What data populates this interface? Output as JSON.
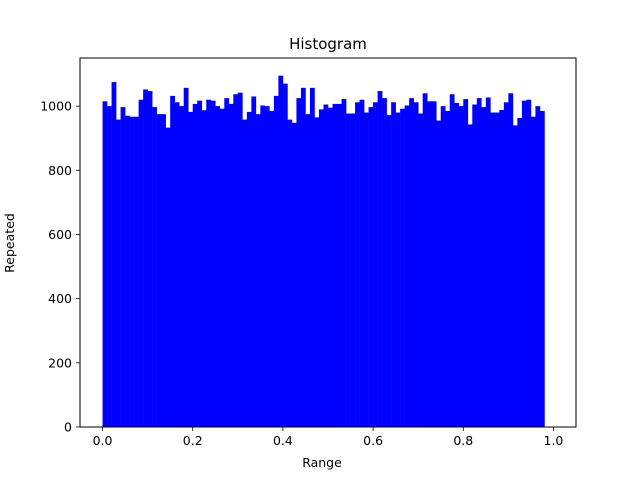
{
  "chart_data": {
    "type": "bar",
    "title": "Histogram",
    "xlabel": "Range",
    "ylabel": "Repeated",
    "xlim": [
      -0.05,
      1.05
    ],
    "ylim": [
      0,
      1150
    ],
    "grid": false,
    "bar_color": "#0000ff",
    "bin_start": 0.0,
    "bin_width": 0.01,
    "x_ticks": [
      {
        "value": 0.0,
        "label": "0.0"
      },
      {
        "value": 0.2,
        "label": "0.2"
      },
      {
        "value": 0.4,
        "label": "0.4"
      },
      {
        "value": 0.6,
        "label": "0.6"
      },
      {
        "value": 0.8,
        "label": "0.8"
      },
      {
        "value": 1.0,
        "label": "1.0"
      }
    ],
    "y_ticks": [
      {
        "value": 0,
        "label": "0"
      },
      {
        "value": 200,
        "label": "200"
      },
      {
        "value": 400,
        "label": "400"
      },
      {
        "value": 600,
        "label": "600"
      },
      {
        "value": 800,
        "label": "800"
      },
      {
        "value": 1000,
        "label": "1000"
      }
    ],
    "values": [
      1015,
      1000,
      1075,
      958,
      997,
      970,
      967,
      967,
      1020,
      1052,
      1047,
      997,
      975,
      975,
      933,
      1032,
      1012,
      1000,
      1057,
      982,
      1007,
      1017,
      987,
      1020,
      1017,
      1000,
      992,
      1025,
      1007,
      1037,
      1042,
      958,
      982,
      1030,
      975,
      1002,
      1000,
      985,
      1032,
      1095,
      1070,
      958,
      948,
      1025,
      1057,
      975,
      1057,
      965,
      990,
      1005,
      995,
      1007,
      1007,
      1022,
      977,
      977,
      1012,
      1020,
      980,
      997,
      1012,
      1047,
      1025,
      972,
      1012,
      980,
      992,
      1002,
      1025,
      1012,
      977,
      1040,
      1015,
      1015,
      955,
      1000,
      985,
      1037,
      1010,
      1000,
      1022,
      943,
      1005,
      1025,
      997,
      1027,
      980,
      980,
      988,
      1012,
      1040,
      940,
      963,
      1017,
      1020,
      967,
      1000,
      985
    ]
  }
}
